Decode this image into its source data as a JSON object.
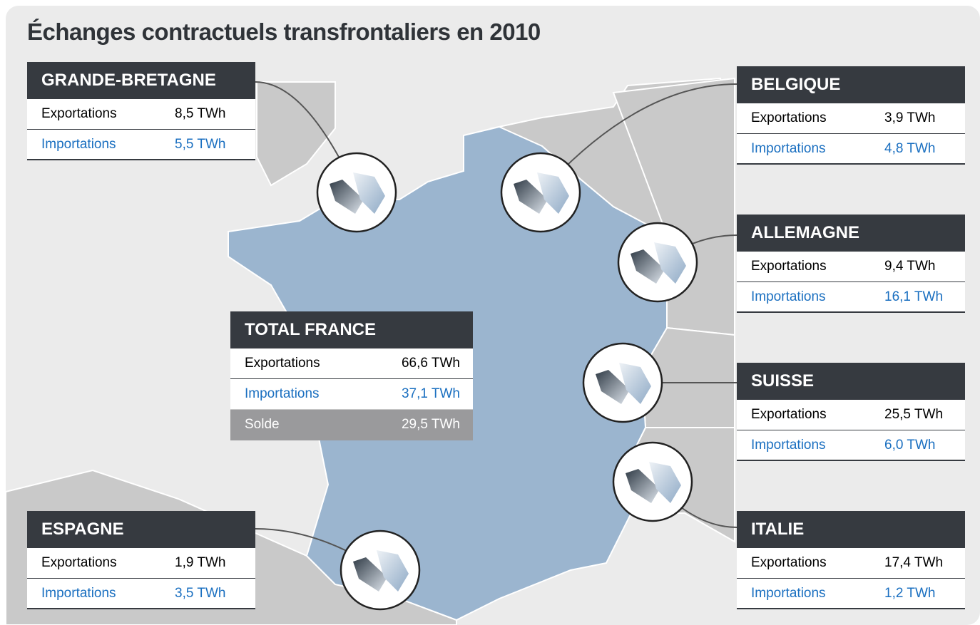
{
  "title": "Échanges contractuels transfrontaliers en 2010",
  "countries": [
    {
      "name": "GRANDE-BRETAGNE",
      "rows": [
        {
          "label": "Exportations",
          "value": "8,5 TWh"
        },
        {
          "label": "Importations",
          "value": "5,5 TWh"
        }
      ]
    },
    {
      "name": "BELGIQUE",
      "rows": [
        {
          "label": "Exportations",
          "value": "3,9 TWh"
        },
        {
          "label": "Importations",
          "value": "4,8 TWh"
        }
      ]
    },
    {
      "name": "ALLEMAGNE",
      "rows": [
        {
          "label": "Exportations",
          "value": "9,4 TWh"
        },
        {
          "label": "Importations",
          "value": "16,1 TWh"
        }
      ]
    },
    {
      "name": "SUISSE",
      "rows": [
        {
          "label": "Exportations",
          "value": "25,5 TWh"
        },
        {
          "label": "Importations",
          "value": "6,0 TWh"
        }
      ]
    },
    {
      "name": "ITALIE",
      "rows": [
        {
          "label": "Exportations",
          "value": "17,4 TWh"
        },
        {
          "label": "Importations",
          "value": "1,2 TWh"
        }
      ]
    },
    {
      "name": "ESPAGNE",
      "rows": [
        {
          "label": "Exportations",
          "value": "1,9 TWh"
        },
        {
          "label": "Importations",
          "value": "3,5 TWh"
        }
      ]
    }
  ],
  "total": {
    "name": "TOTAL FRANCE",
    "rows": [
      {
        "label": "Exportations",
        "value": "66,6 TWh"
      },
      {
        "label": "Importations",
        "value": "37,1 TWh"
      },
      {
        "label": "Solde",
        "value": "29,5 TWh"
      }
    ]
  }
}
